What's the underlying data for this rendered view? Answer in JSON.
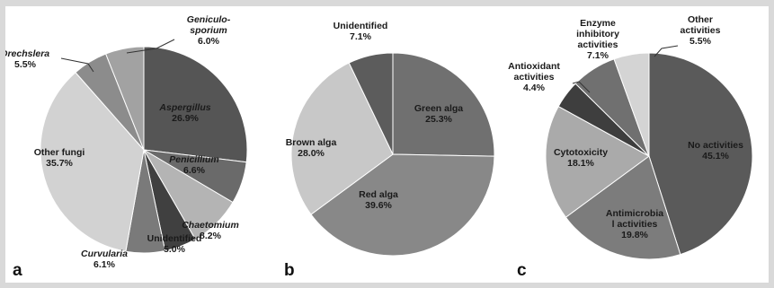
{
  "chart_data": [
    {
      "type": "pie",
      "panel_label": "a",
      "slices": [
        {
          "label": "Aspergillus",
          "value": 26.9,
          "value_label": "26.9%",
          "color": "#555555",
          "italic": true
        },
        {
          "label": "Penicillium",
          "value": 6.6,
          "value_label": "6.6%",
          "color": "#6a6a6a",
          "italic": true
        },
        {
          "label": "Chaetomium",
          "value": 8.2,
          "value_label": "8.2%",
          "color": "#b4b4b4",
          "italic": true
        },
        {
          "label": "Unidentified",
          "value": 5.0,
          "value_label": "5.0%",
          "color": "#404040",
          "italic": false
        },
        {
          "label": "Curvularia",
          "value": 6.1,
          "value_label": "6.1%",
          "color": "#7a7a7a",
          "italic": true
        },
        {
          "label": "Other fungi",
          "value": 35.7,
          "value_label": "35.7%",
          "color": "#d2d2d2",
          "italic": false
        },
        {
          "label": "Drechslera",
          "value": 5.5,
          "value_label": "5.5%",
          "color": "#8c8c8c",
          "italic": true
        },
        {
          "label": "Geniculo-\nsporium",
          "value": 6.0,
          "value_label": "6.0%",
          "color": "#a2a2a2",
          "italic": true
        }
      ]
    },
    {
      "type": "pie",
      "panel_label": "b",
      "slices": [
        {
          "label": "Green alga",
          "value": 25.3,
          "value_label": "25.3%",
          "color": "#707070",
          "italic": false
        },
        {
          "label": "Red alga",
          "value": 39.6,
          "value_label": "39.6%",
          "color": "#888888",
          "italic": false
        },
        {
          "label": "Brown alga",
          "value": 28.0,
          "value_label": "28.0%",
          "color": "#c8c8c8",
          "italic": false
        },
        {
          "label": "Unidentified",
          "value": 7.1,
          "value_label": "7.1%",
          "color": "#5c5c5c",
          "italic": false
        }
      ]
    },
    {
      "type": "pie",
      "panel_label": "c",
      "slices": [
        {
          "label": "No activities",
          "value": 45.1,
          "value_label": "45.1%",
          "color": "#5a5a5a",
          "italic": false
        },
        {
          "label": "Antimicrobia\nl activities",
          "value": 19.8,
          "value_label": "19.8%",
          "color": "#7c7c7c",
          "italic": false
        },
        {
          "label": "Cytotoxicity",
          "value": 18.1,
          "value_label": "18.1%",
          "color": "#aaaaaa",
          "italic": false
        },
        {
          "label": "Antioxidant\nactivities",
          "value": 4.4,
          "value_label": "4.4%",
          "color": "#3e3e3e",
          "italic": false
        },
        {
          "label": "Enzyme\ninhibitory\nactivities",
          "value": 7.1,
          "value_label": "7.1%",
          "color": "#707070",
          "italic": false
        },
        {
          "label": "Other\nactivities",
          "value": 5.5,
          "value_label": "5.5%",
          "color": "#d4d4d4",
          "italic": false
        }
      ]
    }
  ]
}
